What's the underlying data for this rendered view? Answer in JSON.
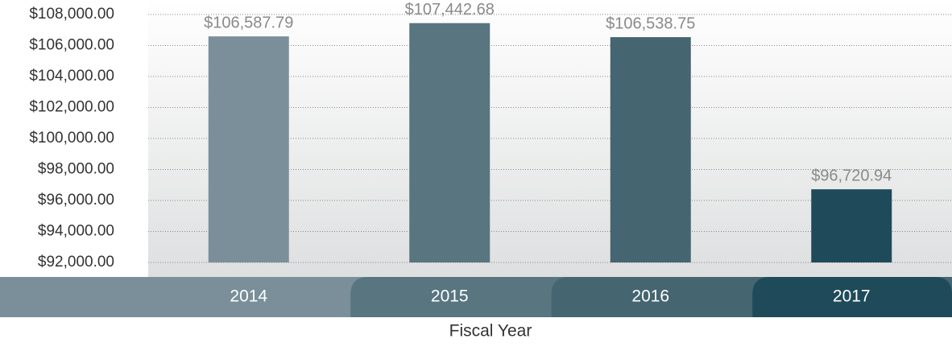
{
  "chart_data": {
    "type": "bar",
    "x_label": "Fiscal Year",
    "categories": [
      "2014",
      "2015",
      "2016",
      "2017"
    ],
    "values": [
      106587.79,
      107442.68,
      106538.75,
      96720.94
    ],
    "value_labels": [
      "$106,587.79",
      "$107,442.68",
      "$106,538.75",
      "$96,720.94"
    ],
    "colors": [
      "#7a8f99",
      "#587580",
      "#456570",
      "#1f4a59"
    ],
    "ylim": [
      92000,
      108000
    ],
    "yticks": [
      {
        "value": 92000,
        "label": "$92,000.00"
      },
      {
        "value": 94000,
        "label": "$94,000.00"
      },
      {
        "value": 96000,
        "label": "$96,000.00"
      },
      {
        "value": 98000,
        "label": "$98,000.00"
      },
      {
        "value": 100000,
        "label": "$100,000.00"
      },
      {
        "value": 102000,
        "label": "$102,000.00"
      },
      {
        "value": 104000,
        "label": "$104,000.00"
      },
      {
        "value": 106000,
        "label": "$106,000.00"
      },
      {
        "value": 108000,
        "label": "$108,000.00"
      }
    ],
    "grid": true
  }
}
